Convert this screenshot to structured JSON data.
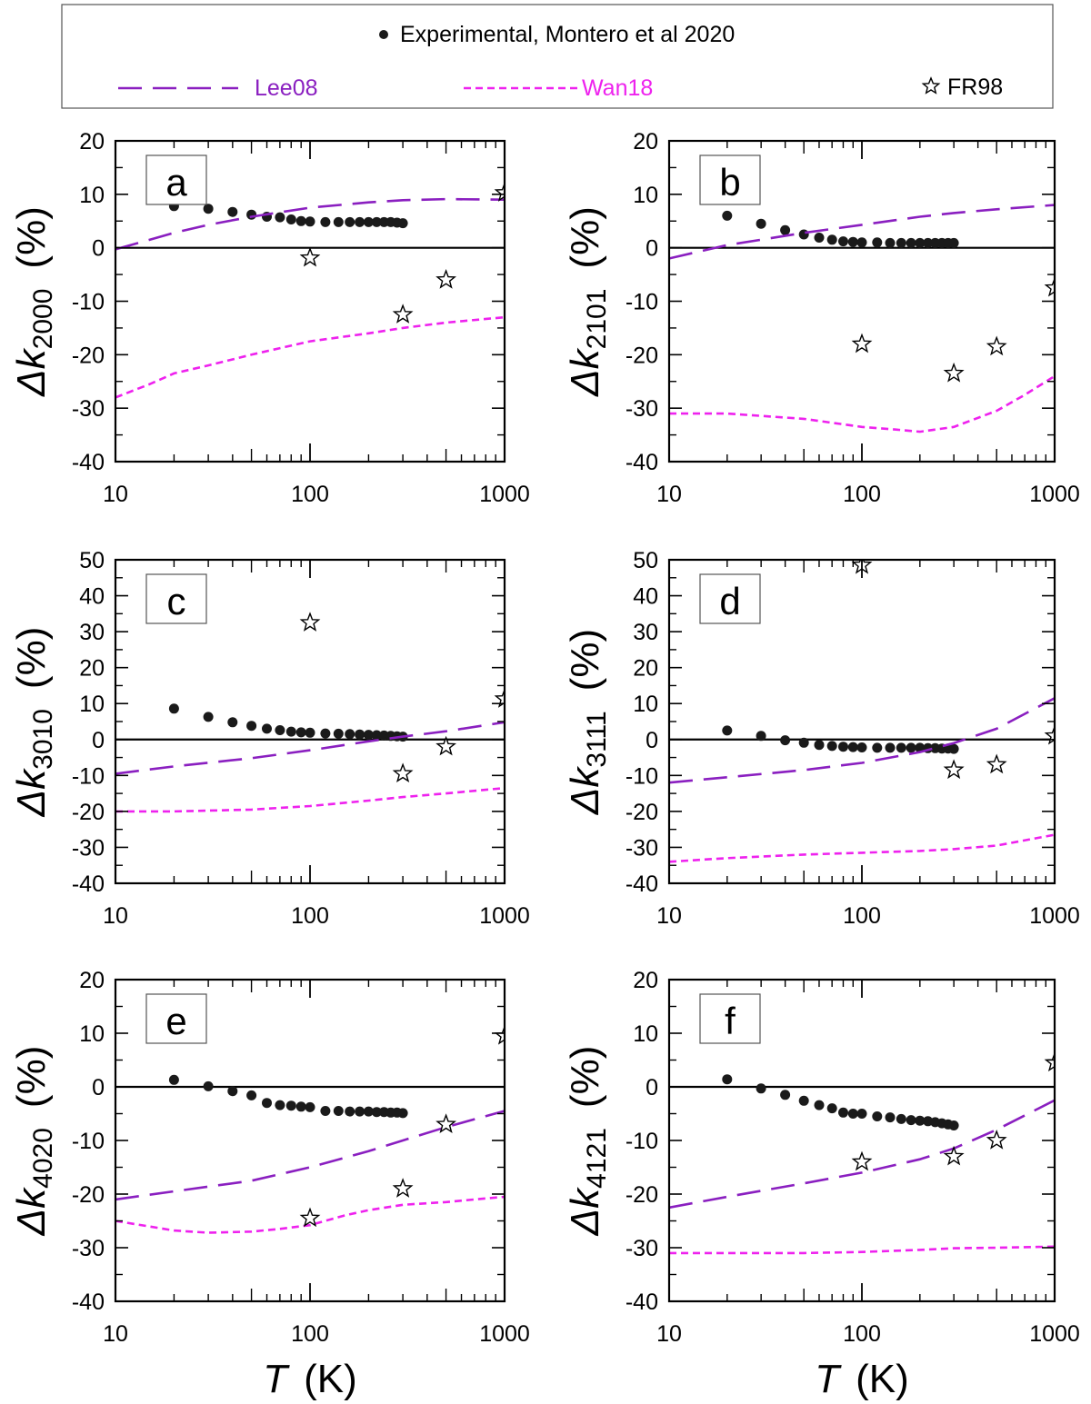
{
  "legend": {
    "experimental": "Experimental, Montero et al 2020",
    "lee08": "Lee08",
    "wan18": "Wan18",
    "fr98": "FR98"
  },
  "colors": {
    "lee08": "#8a1fc0",
    "wan18": "#ee22ee",
    "experimental": "#1a1a1a",
    "axis": "#000000"
  },
  "x_axis": {
    "var": "T",
    "unit": "(K)",
    "ticks": [
      10,
      100,
      1000
    ],
    "scale": "log",
    "range": [
      10,
      1000
    ]
  },
  "chart_data": [
    {
      "type": "line",
      "panel": "a",
      "ylabel_base": "Δk",
      "ylabel_sub": "2000",
      "ylabel_unit": "(%)",
      "ylim": [
        -40,
        20
      ],
      "yticks": [
        -40,
        -30,
        -20,
        -10,
        0,
        10,
        20
      ],
      "series": [
        {
          "name": "Experimental, Montero et al 2020",
          "style": "dots",
          "x": [
            20,
            30,
            40,
            50,
            60,
            70,
            80,
            90,
            100,
            120,
            140,
            160,
            180,
            200,
            220,
            240,
            260,
            280,
            300
          ],
          "y": [
            7.8,
            7.3,
            6.7,
            6.2,
            5.8,
            5.7,
            5.3,
            5.0,
            4.9,
            4.8,
            4.8,
            4.8,
            4.8,
            4.8,
            4.8,
            4.8,
            4.8,
            4.7,
            4.6
          ]
        },
        {
          "name": "Lee08",
          "style": "long-dash",
          "x": [
            10,
            20,
            30,
            50,
            100,
            200,
            300,
            500,
            1000
          ],
          "y": [
            -0.3,
            2.8,
            4.3,
            5.8,
            7.5,
            8.5,
            8.9,
            9.1,
            9.0
          ]
        },
        {
          "name": "Wan18",
          "style": "short-dash",
          "x": [
            10,
            15,
            20,
            30,
            50,
            100,
            200,
            300,
            500,
            1000
          ],
          "y": [
            -28,
            -25.5,
            -23.5,
            -22,
            -20,
            -17.5,
            -16,
            -15,
            -14,
            -13
          ]
        },
        {
          "name": "FR98",
          "style": "stars",
          "x": [
            100,
            300,
            500,
            1000
          ],
          "y": [
            -1.9,
            -12.5,
            -6,
            10.3
          ]
        }
      ]
    },
    {
      "type": "line",
      "panel": "b",
      "ylabel_base": "Δk",
      "ylabel_sub": "2101",
      "ylabel_unit": "(%)",
      "ylim": [
        -40,
        20
      ],
      "yticks": [
        -40,
        -30,
        -20,
        -10,
        0,
        10,
        20
      ],
      "series": [
        {
          "name": "Experimental, Montero et al 2020",
          "style": "dots",
          "x": [
            20,
            30,
            40,
            50,
            60,
            70,
            80,
            90,
            100,
            120,
            140,
            160,
            180,
            200,
            220,
            240,
            260,
            280,
            300
          ],
          "y": [
            6.0,
            4.5,
            3.3,
            2.5,
            1.9,
            1.5,
            1.2,
            1.1,
            1.0,
            1.0,
            0.9,
            0.9,
            0.9,
            0.9,
            0.9,
            0.9,
            0.9,
            0.9,
            0.9
          ]
        },
        {
          "name": "Lee08",
          "style": "long-dash",
          "x": [
            10,
            20,
            30,
            50,
            100,
            200,
            300,
            500,
            1000
          ],
          "y": [
            -2,
            0.5,
            1.5,
            2.8,
            4.3,
            5.8,
            6.5,
            7.2,
            8.0
          ]
        },
        {
          "name": "Wan18",
          "style": "short-dash",
          "x": [
            10,
            20,
            50,
            100,
            150,
            200,
            300,
            500,
            700,
            1000
          ],
          "y": [
            -31,
            -31,
            -32,
            -33.5,
            -34,
            -34.4,
            -33.5,
            -30.5,
            -27.5,
            -24
          ]
        },
        {
          "name": "FR98",
          "style": "stars",
          "x": [
            100,
            300,
            500,
            1000
          ],
          "y": [
            -18,
            -23.5,
            -18.5,
            -7.5
          ]
        }
      ]
    },
    {
      "type": "line",
      "panel": "c",
      "ylabel_base": "Δk",
      "ylabel_sub": "3010",
      "ylabel_unit": "(%)",
      "ylim": [
        -40,
        50
      ],
      "yticks": [
        -40,
        -30,
        -20,
        -10,
        0,
        10,
        20,
        30,
        40,
        50
      ],
      "series": [
        {
          "name": "Experimental, Montero et al 2020",
          "style": "dots",
          "x": [
            20,
            30,
            40,
            50,
            60,
            70,
            80,
            90,
            100,
            120,
            140,
            160,
            180,
            200,
            220,
            240,
            260,
            280,
            300
          ],
          "y": [
            8.6,
            6.3,
            4.8,
            3.8,
            3.0,
            2.6,
            2.2,
            2.0,
            1.9,
            1.7,
            1.6,
            1.5,
            1.4,
            1.3,
            1.2,
            1.1,
            1.0,
            0.9,
            0.8
          ]
        },
        {
          "name": "Lee08",
          "style": "long-dash",
          "x": [
            10,
            20,
            50,
            100,
            200,
            300,
            500,
            1000
          ],
          "y": [
            -9.5,
            -7.5,
            -5.2,
            -3,
            -0.5,
            0.8,
            2.3,
            4.8
          ]
        },
        {
          "name": "Wan18",
          "style": "short-dash",
          "x": [
            10,
            20,
            50,
            100,
            200,
            300,
            500,
            1000
          ],
          "y": [
            -20,
            -20,
            -19.5,
            -18.5,
            -17,
            -16,
            -15,
            -13.5
          ]
        },
        {
          "name": "FR98",
          "style": "stars",
          "x": [
            100,
            300,
            500,
            1000
          ],
          "y": [
            32.5,
            -9.5,
            -2,
            11.3
          ]
        }
      ]
    },
    {
      "type": "line",
      "panel": "d",
      "ylabel_base": "Δk",
      "ylabel_sub": "3111",
      "ylabel_unit": "(%)",
      "ylim": [
        -40,
        50
      ],
      "yticks": [
        -40,
        -30,
        -20,
        -10,
        0,
        10,
        20,
        30,
        40,
        50
      ],
      "series": [
        {
          "name": "Experimental, Montero et al 2020",
          "style": "dots",
          "x": [
            20,
            30,
            40,
            50,
            60,
            70,
            80,
            90,
            100,
            120,
            140,
            160,
            180,
            200,
            220,
            240,
            260,
            280,
            300
          ],
          "y": [
            2.5,
            1.0,
            -0.2,
            -0.9,
            -1.5,
            -1.8,
            -2.0,
            -2.1,
            -2.2,
            -2.3,
            -2.3,
            -2.3,
            -2.3,
            -2.3,
            -2.4,
            -2.4,
            -2.5,
            -2.5,
            -2.6
          ]
        },
        {
          "name": "Lee08",
          "style": "long-dash",
          "x": [
            10,
            20,
            50,
            100,
            200,
            300,
            500,
            1000
          ],
          "y": [
            -12,
            -10.5,
            -8.5,
            -6.5,
            -3.5,
            -1,
            3,
            11.5
          ]
        },
        {
          "name": "Wan18",
          "style": "short-dash",
          "x": [
            10,
            20,
            50,
            100,
            200,
            300,
            500,
            1000
          ],
          "y": [
            -34,
            -33,
            -32,
            -31.5,
            -31,
            -30.5,
            -29.5,
            -26.5
          ]
        },
        {
          "name": "FR98",
          "style": "stars",
          "x": [
            100,
            300,
            500,
            1000
          ],
          "y": [
            48.5,
            -8.5,
            -7,
            1
          ]
        }
      ]
    },
    {
      "type": "line",
      "panel": "e",
      "ylabel_base": "Δk",
      "ylabel_sub": "4020",
      "ylabel_unit": "(%)",
      "ylim": [
        -40,
        20
      ],
      "yticks": [
        -40,
        -30,
        -20,
        -10,
        0,
        10,
        20
      ],
      "series": [
        {
          "name": "Experimental, Montero et al 2020",
          "style": "dots",
          "x": [
            20,
            30,
            40,
            50,
            60,
            70,
            80,
            90,
            100,
            120,
            140,
            160,
            180,
            200,
            220,
            240,
            260,
            280,
            300
          ],
          "y": [
            1.3,
            0.1,
            -0.8,
            -1.6,
            -3.0,
            -3.4,
            -3.5,
            -3.7,
            -3.8,
            -4.5,
            -4.5,
            -4.6,
            -4.6,
            -4.6,
            -4.7,
            -4.7,
            -4.8,
            -4.8,
            -4.9
          ]
        },
        {
          "name": "Lee08",
          "style": "long-dash",
          "x": [
            10,
            20,
            50,
            100,
            200,
            300,
            500,
            1000
          ],
          "y": [
            -21,
            -19.5,
            -17.5,
            -15,
            -12,
            -10,
            -7.5,
            -4.5
          ]
        },
        {
          "name": "Wan18",
          "style": "short-dash",
          "x": [
            10,
            20,
            30,
            50,
            70,
            100,
            150,
            200,
            300,
            500,
            700,
            1000
          ],
          "y": [
            -25,
            -26.8,
            -27.2,
            -27,
            -26.5,
            -25.8,
            -24,
            -23,
            -22,
            -21.5,
            -21,
            -20.5
          ]
        },
        {
          "name": "FR98",
          "style": "stars",
          "x": [
            100,
            300,
            500,
            1000
          ],
          "y": [
            -24.5,
            -19,
            -7,
            9.5
          ]
        }
      ]
    },
    {
      "type": "line",
      "panel": "f",
      "ylabel_base": "Δk",
      "ylabel_sub": "4121",
      "ylabel_unit": "(%)",
      "ylim": [
        -40,
        20
      ],
      "yticks": [
        -40,
        -30,
        -20,
        -10,
        0,
        10,
        20
      ],
      "series": [
        {
          "name": "Experimental, Montero et al 2020",
          "style": "dots",
          "x": [
            20,
            30,
            40,
            50,
            60,
            70,
            80,
            90,
            100,
            120,
            140,
            160,
            180,
            200,
            220,
            240,
            260,
            280,
            300
          ],
          "y": [
            1.4,
            -0.3,
            -1.5,
            -2.6,
            -3.4,
            -4.0,
            -4.8,
            -5.0,
            -5.0,
            -5.5,
            -5.7,
            -6.0,
            -6.2,
            -6.3,
            -6.4,
            -6.6,
            -6.8,
            -7.0,
            -7.2
          ]
        },
        {
          "name": "Lee08",
          "style": "long-dash",
          "x": [
            10,
            20,
            50,
            100,
            200,
            300,
            500,
            1000
          ],
          "y": [
            -22.5,
            -20.5,
            -18,
            -16,
            -13.5,
            -11.5,
            -8,
            -2.5
          ]
        },
        {
          "name": "Wan18",
          "style": "short-dash",
          "x": [
            10,
            20,
            50,
            100,
            200,
            300,
            500,
            1000
          ],
          "y": [
            -31,
            -31,
            -31,
            -30.8,
            -30.4,
            -30.1,
            -30,
            -29.8
          ]
        },
        {
          "name": "FR98",
          "style": "stars",
          "x": [
            100,
            300,
            500,
            1000
          ],
          "y": [
            -14,
            -13,
            -10,
            4.5
          ]
        }
      ]
    }
  ]
}
